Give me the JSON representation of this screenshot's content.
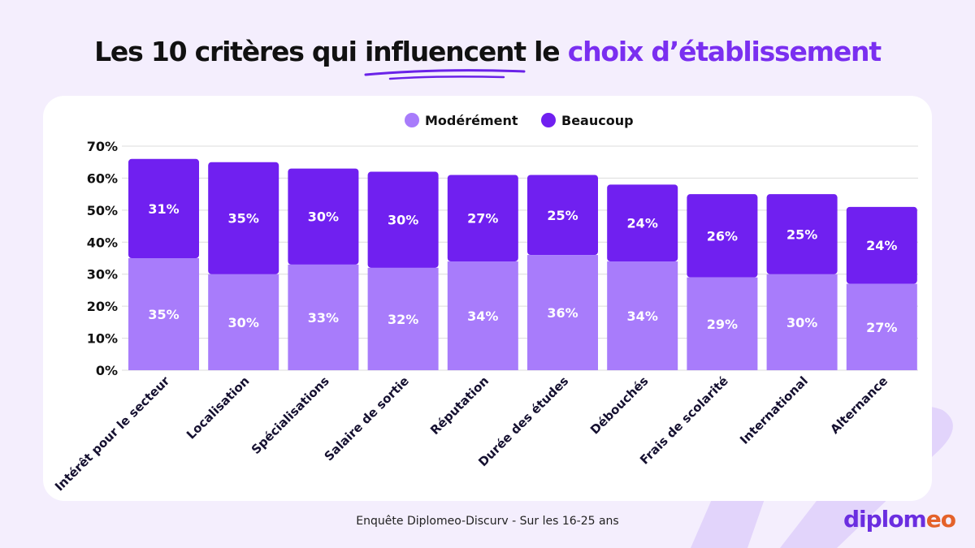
{
  "title": {
    "part1": "Les 10 critères qui influencent le ",
    "part2": "choix d’établissement"
  },
  "source": "Enquête Diplomeo-Discurv - Sur les 16-25 ans",
  "logo": "diplomeo",
  "colors": {
    "moderement": "#a87cfb",
    "beaucoup": "#7020f0",
    "background": "#f4eefd"
  },
  "chart_data": {
    "type": "bar",
    "stacked": true,
    "categories": [
      "Intérêt pour le secteur",
      "Localisation",
      "Spécialisations",
      "Salaire de sortie",
      "Réputation",
      "Durée des études",
      "Débouchés",
      "Frais de scolarité",
      "International",
      "Alternance"
    ],
    "series": [
      {
        "name": "Modérément",
        "values": [
          35,
          30,
          33,
          32,
          34,
          36,
          34,
          29,
          30,
          27
        ]
      },
      {
        "name": "Beaucoup",
        "values": [
          31,
          35,
          30,
          30,
          27,
          25,
          24,
          26,
          25,
          24
        ]
      }
    ],
    "ylim": [
      0,
      70
    ],
    "yticks": [
      "0%",
      "10%",
      "20%",
      "30%",
      "40%",
      "50%",
      "60%",
      "70%"
    ],
    "grid": true,
    "legend": "top-center"
  }
}
